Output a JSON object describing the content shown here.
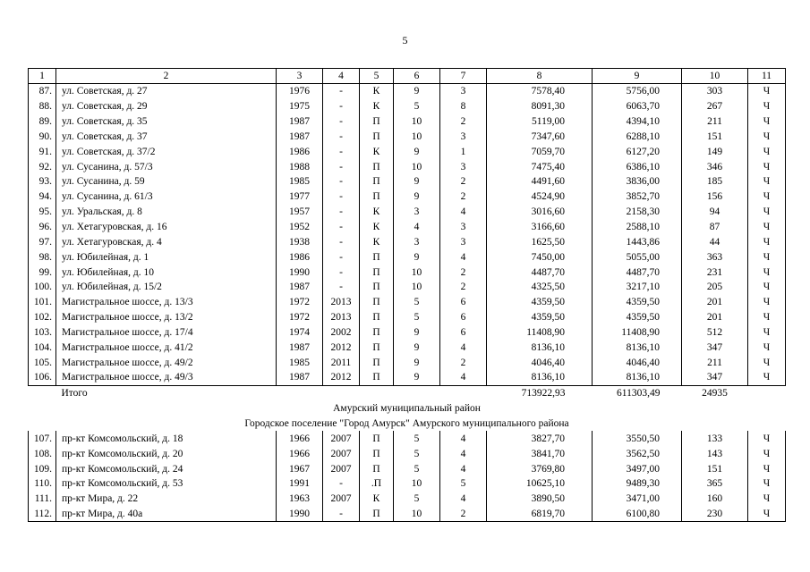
{
  "page_number": "5",
  "header": [
    "1",
    "2",
    "3",
    "4",
    "5",
    "6",
    "7",
    "8",
    "9",
    "10",
    "11"
  ],
  "rows_a": [
    [
      "87.",
      "ул. Советская, д. 27",
      "1976",
      "-",
      "К",
      "9",
      "3",
      "7578,40",
      "5756,00",
      "303",
      "Ч"
    ],
    [
      "88.",
      "ул. Советская, д. 29",
      "1975",
      "-",
      "К",
      "5",
      "8",
      "8091,30",
      "6063,70",
      "267",
      "Ч"
    ],
    [
      "89.",
      "ул. Советская, д. 35",
      "1987",
      "-",
      "П",
      "10",
      "2",
      "5119,00",
      "4394,10",
      "211",
      "Ч"
    ],
    [
      "90.",
      "ул. Советская, д. 37",
      "1987",
      "-",
      "П",
      "10",
      "3",
      "7347,60",
      "6288,10",
      "151",
      "Ч"
    ],
    [
      "91.",
      "ул. Советская, д. 37/2",
      "1986",
      "-",
      "К",
      "9",
      "1",
      "7059,70",
      "6127,20",
      "149",
      "Ч"
    ],
    [
      "92.",
      "ул. Сусанина, д. 57/3",
      "1988",
      "-",
      "П",
      "10",
      "3",
      "7475,40",
      "6386,10",
      "346",
      "Ч"
    ],
    [
      "93.",
      "ул. Сусанина, д. 59",
      "1985",
      "-",
      "П",
      "9",
      "2",
      "4491,60",
      "3836,00",
      "185",
      "Ч"
    ],
    [
      "94.",
      "ул. Сусанина, д. 61/3",
      "1977",
      "-",
      "П",
      "9",
      "2",
      "4524,90",
      "3852,70",
      "156",
      "Ч"
    ],
    [
      "95.",
      "ул. Уральская, д. 8",
      "1957",
      "-",
      "К",
      "3",
      "4",
      "3016,60",
      "2158,30",
      "94",
      "Ч"
    ],
    [
      "96.",
      "ул. Хетагуровская, д. 16",
      "1952",
      "-",
      "К",
      "4",
      "3",
      "3166,60",
      "2588,10",
      "87",
      "Ч"
    ],
    [
      "97.",
      "ул. Хетагуровская, д. 4",
      "1938",
      "-",
      "К",
      "3",
      "3",
      "1625,50",
      "1443,86",
      "44",
      "Ч"
    ],
    [
      "98.",
      "ул. Юбилейная, д. 1",
      "1986",
      "-",
      "П",
      "9",
      "4",
      "7450,00",
      "5055,00",
      "363",
      "Ч"
    ],
    [
      "99.",
      "ул. Юбилейная, д. 10",
      "1990",
      "-",
      "П",
      "10",
      "2",
      "4487,70",
      "4487,70",
      "231",
      "Ч"
    ],
    [
      "100.",
      "ул. Юбилейная, д. 15/2",
      "1987",
      "-",
      "П",
      "10",
      "2",
      "4325,50",
      "3217,10",
      "205",
      "Ч"
    ],
    [
      "101.",
      "Магистральное шоссе, д. 13/3",
      "1972",
      "2013",
      "П",
      "5",
      "6",
      "4359,50",
      "4359,50",
      "201",
      "Ч"
    ],
    [
      "102.",
      "Магистральное шоссе, д. 13/2",
      "1972",
      "2013",
      "П",
      "5",
      "6",
      "4359,50",
      "4359,50",
      "201",
      "Ч"
    ],
    [
      "103.",
      "Магистральное шоссе, д. 17/4",
      "1974",
      "2002",
      "П",
      "9",
      "6",
      "11408,90",
      "11408,90",
      "512",
      "Ч"
    ],
    [
      "104.",
      "Магистральное шоссе, д. 41/2",
      "1987",
      "2012",
      "П",
      "9",
      "4",
      "8136,10",
      "8136,10",
      "347",
      "Ч"
    ],
    [
      "105.",
      "Магистральное шоссе, д. 49/2",
      "1985",
      "2011",
      "П",
      "9",
      "2",
      "4046,40",
      "4046,40",
      "211",
      "Ч"
    ],
    [
      "106.",
      "Магистральное шоссе, д. 49/3",
      "1987",
      "2012",
      "П",
      "9",
      "4",
      "8136,10",
      "8136,10",
      "347",
      "Ч"
    ]
  ],
  "total": {
    "label": "Итого",
    "area_total": "713922,93",
    "area_living": "611303,49",
    "residents": "24935"
  },
  "section_district": "Амурский муниципальный район",
  "section_settlement": "Городское поселение \"Город Амурск\" Амурского муниципального района",
  "rows_b": [
    [
      "107.",
      "пр-кт Комсомольский, д. 18",
      "1966",
      "2007",
      "П",
      "5",
      "4",
      "3827,70",
      "3550,50",
      "133",
      "Ч"
    ],
    [
      "108.",
      "пр-кт Комсомольский, д. 20",
      "1966",
      "2007",
      "П",
      "5",
      "4",
      "3841,70",
      "3562,50",
      "143",
      "Ч"
    ],
    [
      "109.",
      "пр-кт Комсомольский, д. 24",
      "1967",
      "2007",
      "П",
      "5",
      "4",
      "3769,80",
      "3497,00",
      "151",
      "Ч"
    ],
    [
      "110.",
      "пр-кт Комсомольский, д. 53",
      "1991",
      "-",
      ".П",
      "10",
      "5",
      "10625,10",
      "9489,30",
      "365",
      "Ч"
    ],
    [
      "111.",
      "пр-кт Мира, д. 22",
      "1963",
      "2007",
      "К",
      "5",
      "4",
      "3890,50",
      "3471,00",
      "160",
      "Ч"
    ],
    [
      "112.",
      "пр-кт Мира, д. 40а",
      "1990",
      "-",
      "П",
      "10",
      "2",
      "6819,70",
      "6100,80",
      "230",
      "Ч"
    ]
  ]
}
